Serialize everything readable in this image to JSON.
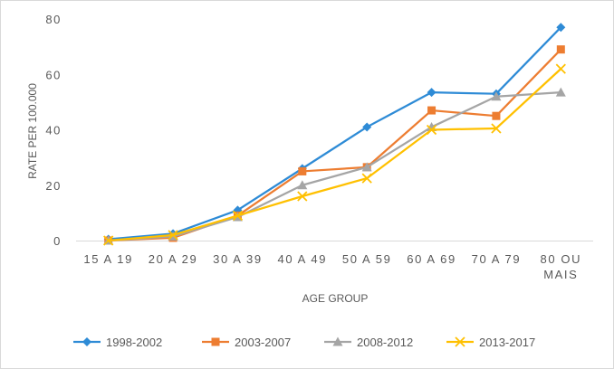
{
  "chart_data": {
    "type": "line",
    "title": "",
    "xlabel": "AGE GROUP",
    "ylabel": "RATE PER 100.000",
    "ylim": [
      0,
      80
    ],
    "yticks": [
      0,
      20,
      40,
      60,
      80
    ],
    "grid": false,
    "legend_position": "bottom",
    "categories": [
      [
        "15 A 19"
      ],
      [
        "20 A 29"
      ],
      [
        "30 A 39"
      ],
      [
        "40 A 49"
      ],
      [
        "50 A 59"
      ],
      [
        "60 A 69"
      ],
      [
        "70 A 79"
      ],
      [
        "80 OU",
        "MAIS"
      ]
    ],
    "series": [
      {
        "name": "1998-2002",
        "color": "#2E8BD6",
        "marker": "diamond",
        "values": [
          0.5,
          2.5,
          11,
          26,
          41,
          53.5,
          53,
          77
        ]
      },
      {
        "name": "2003-2007",
        "color": "#ED7D31",
        "marker": "square",
        "values": [
          0,
          1,
          9,
          25,
          26.5,
          47,
          45,
          69
        ]
      },
      {
        "name": "2008-2012",
        "color": "#A5A5A5",
        "marker": "triangle",
        "values": [
          0,
          1.5,
          8.5,
          20,
          26.5,
          41,
          52,
          53.5
        ]
      },
      {
        "name": "2013-2017",
        "color": "#FFC000",
        "marker": "x",
        "values": [
          0,
          2,
          9,
          16,
          22.5,
          40,
          40.5,
          62
        ]
      }
    ]
  }
}
